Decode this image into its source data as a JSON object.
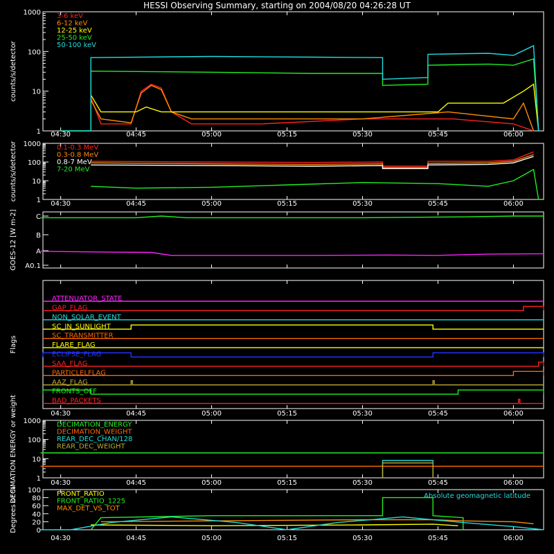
{
  "title": "HESSI Observing Summary, starting on 2004/08/20 04:26:28 UT",
  "time_labels": [
    "04:30",
    "04:45",
    "05:00",
    "05:15",
    "05:30",
    "05:45",
    "06:00"
  ],
  "colors": {
    "red": "#ff2020",
    "orange": "#ff8c00",
    "yellow": "#ffff00",
    "green": "#22ee22",
    "cyan": "#22dddd",
    "magenta": "#ff22ff",
    "blue": "#2233ff",
    "white": "#ffffff",
    "olive": "#bbaa33",
    "brown_orange": "#ff6600"
  },
  "chart_data": [
    {
      "type": "line",
      "ylabel": "counts/s/detector",
      "log_y": true,
      "ylim": [
        1,
        1000
      ],
      "yticks": [
        "1",
        "10",
        "100",
        "1000"
      ],
      "series": [
        {
          "name": "3-6 keV",
          "color": "#ff2020",
          "points": [
            [
              "04:36",
              7
            ],
            [
              "04:38",
              1.5
            ],
            [
              "04:44",
              1.5
            ],
            [
              "04:46",
              10
            ],
            [
              "04:48",
              15
            ],
            [
              "04:50",
              12
            ],
            [
              "04:52",
              3
            ],
            [
              "04:56",
              1.5
            ],
            [
              "05:10",
              1.5
            ],
            [
              "05:30",
              2
            ],
            [
              "05:48",
              2
            ],
            [
              "06:00",
              1.5
            ],
            [
              "06:04",
              1
            ]
          ]
        },
        {
          "name": "6-12 keV",
          "color": "#ff8c00",
          "points": [
            [
              "04:36",
              6
            ],
            [
              "04:38",
              2
            ],
            [
              "04:44",
              1.6
            ],
            [
              "04:46",
              9
            ],
            [
              "04:48",
              14
            ],
            [
              "04:50",
              11
            ],
            [
              "04:52",
              3
            ],
            [
              "04:56",
              2
            ],
            [
              "05:30",
              2
            ],
            [
              "05:47",
              3
            ],
            [
              "06:00",
              2
            ],
            [
              "06:02",
              5
            ],
            [
              "06:04",
              1
            ]
          ]
        },
        {
          "name": "12-25 keV",
          "color": "#ffff00",
          "points": [
            [
              "04:36",
              8
            ],
            [
              "04:38",
              3
            ],
            [
              "04:45",
              3
            ],
            [
              "04:47",
              4
            ],
            [
              "04:50",
              3
            ],
            [
              "05:15",
              3
            ],
            [
              "05:30",
              3
            ],
            [
              "05:36",
              3
            ],
            [
              "05:45",
              3
            ],
            [
              "05:47",
              5
            ],
            [
              "05:58",
              5
            ],
            [
              "06:02",
              10
            ],
            [
              "06:04",
              15
            ],
            [
              "06:05",
              1
            ]
          ]
        },
        {
          "name": "25-50 keV",
          "color": "#22ee22",
          "points": [
            [
              "04:30",
              1
            ],
            [
              "04:36",
              1
            ],
            [
              "04:36",
              32
            ],
            [
              "05:00",
              30
            ],
            [
              "05:20",
              28
            ],
            [
              "05:34",
              28
            ],
            [
              "05:34",
              14
            ],
            [
              "05:43",
              15
            ],
            [
              "05:43",
              45
            ],
            [
              "05:55",
              48
            ],
            [
              "06:00",
              45
            ],
            [
              "06:04",
              65
            ],
            [
              "06:05",
              1
            ]
          ]
        },
        {
          "name": "50-100 keV",
          "color": "#22dddd",
          "points": [
            [
              "04:30",
              1
            ],
            [
              "04:36",
              1
            ],
            [
              "04:36",
              70
            ],
            [
              "05:00",
              75
            ],
            [
              "05:20",
              72
            ],
            [
              "05:34",
              70
            ],
            [
              "05:34",
              20
            ],
            [
              "05:43",
              22
            ],
            [
              "05:43",
              85
            ],
            [
              "05:55",
              90
            ],
            [
              "06:00",
              80
            ],
            [
              "06:04",
              140
            ],
            [
              "06:05",
              1
            ]
          ]
        }
      ]
    },
    {
      "type": "line",
      "ylabel": "counts/s/detector",
      "log_y": true,
      "ylim": [
        1,
        1000
      ],
      "yticks": [
        "1",
        "10",
        "100",
        "1000"
      ],
      "series": [
        {
          "name": "0.1-0.3 MeV",
          "color": "#ff2020",
          "points": [
            [
              "04:36",
              110
            ],
            [
              "05:00",
              100
            ],
            [
              "05:20",
              95
            ],
            [
              "05:34",
              100
            ],
            [
              "05:34",
              60
            ],
            [
              "05:43",
              60
            ],
            [
              "05:43",
              110
            ],
            [
              "05:55",
              110
            ],
            [
              "06:00",
              130
            ],
            [
              "06:04",
              350
            ]
          ]
        },
        {
          "name": "0.3-0.8 MeV",
          "color": "#ff8c00",
          "points": [
            [
              "04:36",
              90
            ],
            [
              "05:00",
              80
            ],
            [
              "05:20",
              75
            ],
            [
              "05:34",
              80
            ],
            [
              "05:34",
              50
            ],
            [
              "05:43",
              50
            ],
            [
              "05:43",
              85
            ],
            [
              "05:55",
              90
            ],
            [
              "06:00",
              110
            ],
            [
              "06:04",
              250
            ]
          ]
        },
        {
          "name": "0.8-7 MeV",
          "color": "#ffffff",
          "points": [
            [
              "04:36",
              70
            ],
            [
              "05:00",
              65
            ],
            [
              "05:20",
              60
            ],
            [
              "05:34",
              65
            ],
            [
              "05:34",
              45
            ],
            [
              "05:43",
              45
            ],
            [
              "05:43",
              70
            ],
            [
              "05:55",
              75
            ],
            [
              "06:00",
              90
            ],
            [
              "06:04",
              200
            ]
          ]
        },
        {
          "name": "7-20 MeV",
          "color": "#22ee22",
          "points": [
            [
              "04:36",
              5
            ],
            [
              "04:45",
              4
            ],
            [
              "05:00",
              4.5
            ],
            [
              "05:15",
              6
            ],
            [
              "05:30",
              8
            ],
            [
              "05:45",
              7
            ],
            [
              "05:55",
              5
            ],
            [
              "06:00",
              10
            ],
            [
              "06:04",
              40
            ],
            [
              "06:05",
              1
            ]
          ]
        }
      ]
    },
    {
      "type": "line",
      "ylabel": "GOES-12 [W m-2]",
      "yticks": [
        "A0.1",
        "A",
        "B",
        "C"
      ],
      "series": [
        {
          "name": "",
          "color": "#22ee22",
          "points": [
            [
              "04:26",
              2.9
            ],
            [
              "04:45",
              2.9
            ],
            [
              "04:50",
              3.0
            ],
            [
              "04:55",
              2.9
            ],
            [
              "05:30",
              2.9
            ],
            [
              "05:50",
              2.95
            ],
            [
              "06:00",
              3.0
            ],
            [
              "06:06",
              3.0
            ]
          ]
        },
        {
          "name": "",
          "color": "#ff22ff",
          "points": [
            [
              "04:26",
              0.85
            ],
            [
              "04:40",
              0.8
            ],
            [
              "04:48",
              0.78
            ],
            [
              "04:52",
              0.6
            ],
            [
              "05:20",
              0.6
            ],
            [
              "05:35",
              0.62
            ],
            [
              "05:45",
              0.6
            ],
            [
              "05:55",
              0.68
            ],
            [
              "06:06",
              0.7
            ]
          ]
        }
      ]
    },
    {
      "type": "table",
      "ylabel": "Flags",
      "flags": [
        {
          "name": "ATTENUATOR_STATE",
          "color": "#ff22ff",
          "segments": []
        },
        {
          "name": "GAP_FLAG",
          "color": "#ff2020",
          "segments": [
            [
              "06:02",
              "06:06"
            ]
          ]
        },
        {
          "name": "NON_SOLAR_EVENT",
          "color": "#22dddd",
          "segments": []
        },
        {
          "name": "SC_IN_SUNLIGHT",
          "color": "#ffff00",
          "segments": [
            [
              "04:44",
              "05:44"
            ]
          ]
        },
        {
          "name": "SC_TRANSMITTER",
          "color": "#ff6600",
          "segments": []
        },
        {
          "name": "FLARE_FLAG",
          "color": "#ffff00",
          "segments": []
        },
        {
          "name": "ECLIPSE_FLAG",
          "color": "#2233ff",
          "segments": [
            [
              "04:26",
              "04:44"
            ],
            [
              "05:44",
              "06:06"
            ]
          ]
        },
        {
          "name": "SAA_FLAG",
          "color": "#ff2020",
          "segments": [
            [
              "06:05",
              "06:06"
            ]
          ]
        },
        {
          "name": "PARTICLELFLAG",
          "color": "#ff6600",
          "segments": [
            [
              "06:00",
              "06:06"
            ]
          ]
        },
        {
          "name": "AAZ_FLAG",
          "color": "#bbaa33",
          "segments": [
            [
              "04:44",
              "04:44"
            ],
            [
              "05:44",
              "05:44"
            ]
          ]
        },
        {
          "name": "FRONTS_OFF",
          "color": "#22ee22",
          "segments": [
            [
              "04:26",
              "04:36"
            ],
            [
              "05:49",
              "06:06"
            ]
          ]
        },
        {
          "name": "BAD_PACKETS",
          "color": "#ff2020",
          "segments": [
            [
              "06:01",
              "06:01"
            ]
          ]
        }
      ]
    },
    {
      "type": "line",
      "ylabel": "DECIMATION ENERGY or weight",
      "log_y": true,
      "ylim": [
        1,
        1000
      ],
      "yticks": [
        "1",
        "10",
        "100",
        "1000"
      ],
      "series": [
        {
          "name": "DECIMATION_ENERGY",
          "color": "#22ee22",
          "points": [
            [
              "04:26",
              20
            ],
            [
              "06:06",
              20
            ]
          ]
        },
        {
          "name": "DECIMATION_WEIGHT",
          "color": "#ff6600",
          "points": [
            [
              "04:26",
              4
            ],
            [
              "06:06",
              4
            ]
          ]
        },
        {
          "name": "REAR_DEC_CHAN/128",
          "color": "#22dddd",
          "points": [
            [
              "05:34",
              1
            ],
            [
              "05:34",
              8
            ],
            [
              "05:44",
              8
            ],
            [
              "05:44",
              1
            ]
          ]
        },
        {
          "name": "REAR_DEC_WEIGHT",
          "color": "#bbaa33",
          "points": [
            [
              "05:34",
              1
            ],
            [
              "05:34",
              6
            ],
            [
              "05:44",
              6
            ],
            [
              "05:44",
              1
            ]
          ]
        }
      ]
    },
    {
      "type": "line",
      "ylabel": "Degrees or %",
      "ylim": [
        0,
        100
      ],
      "yticks": [
        "0",
        "20",
        "40",
        "60",
        "80",
        "100"
      ],
      "annotation": "Absolute geomagnetic latitude",
      "series": [
        {
          "name": "FRONT_RATIO",
          "color": "#ffff00",
          "points": [
            [
              "04:36",
              12
            ],
            [
              "05:00",
              10
            ],
            [
              "05:30",
              12
            ],
            [
              "05:44",
              14
            ],
            [
              "05:49",
              10
            ]
          ]
        },
        {
          "name": "FRONT_RATIO_1225",
          "color": "#22ee22",
          "points": [
            [
              "04:36",
              0
            ],
            [
              "04:38",
              30
            ],
            [
              "05:00",
              35
            ],
            [
              "05:20",
              35
            ],
            [
              "05:34",
              35
            ],
            [
              "05:34",
              80
            ],
            [
              "05:44",
              80
            ],
            [
              "05:44",
              35
            ],
            [
              "05:50",
              30
            ],
            [
              "05:50",
              0
            ]
          ]
        },
        {
          "name": "MAX_DET_VS_TOT",
          "color": "#ff8c00",
          "points": [
            [
              "04:38",
              20
            ],
            [
              "05:00",
              22
            ],
            [
              "05:30",
              25
            ],
            [
              "05:44",
              25
            ],
            [
              "05:50",
              22
            ],
            [
              "06:00",
              20
            ],
            [
              "06:04",
              15
            ]
          ]
        },
        {
          "name": "",
          "color": "#22dddd",
          "points": [
            [
              "04:26",
              0
            ],
            [
              "04:32",
              0
            ],
            [
              "04:40",
              18
            ],
            [
              "04:52",
              32
            ],
            [
              "05:05",
              18
            ],
            [
              "05:15",
              0
            ],
            [
              "05:25",
              18
            ],
            [
              "05:38",
              32
            ],
            [
              "05:50",
              18
            ],
            [
              "06:00",
              8
            ],
            [
              "06:06",
              0
            ]
          ]
        }
      ]
    }
  ]
}
